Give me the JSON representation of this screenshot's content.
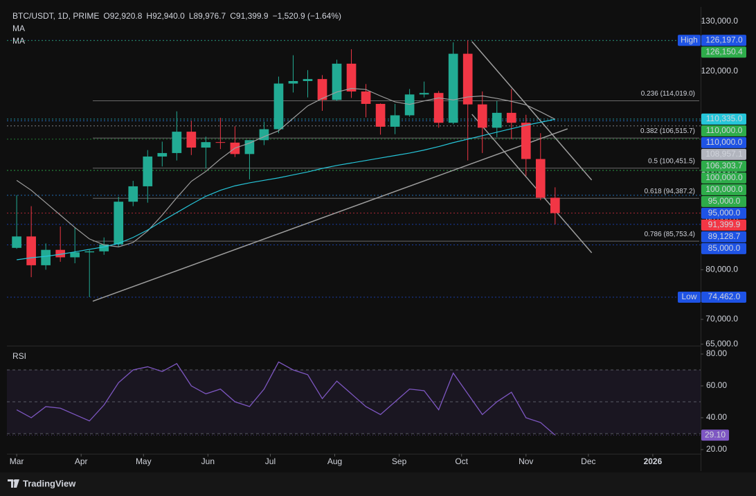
{
  "chart_data": {
    "type": "candlestick",
    "title": "BTC/USDT, 1D, PRIME",
    "header": {
      "labels": [
        "O",
        "H",
        "L",
        "C"
      ],
      "values": [
        92920.8,
        92940,
        89976.7,
        91399.9
      ],
      "value_labels": [
        "92,920.8",
        "92,940.0",
        "89,976.7",
        "91,399.9"
      ],
      "change": "−1,520.9 (−1.64%)"
    },
    "up_color": "#22ab94",
    "down_color": "#f23645",
    "x": [
      0,
      7,
      14,
      21,
      28,
      35,
      42,
      49,
      56,
      63,
      70,
      77,
      84,
      91,
      98,
      105,
      112,
      119,
      126,
      133,
      140,
      147,
      154,
      161,
      168,
      175,
      182,
      189,
      196,
      203,
      210,
      217,
      224,
      231,
      238,
      245,
      252,
      259
    ],
    "open": [
      84400,
      86700,
      80900,
      84000,
      82500,
      83500,
      83700,
      85100,
      93700,
      96800,
      102800,
      103500,
      107800,
      104600,
      105700,
      105600,
      103300,
      106100,
      108300,
      117500,
      118000,
      118400,
      114200,
      121500,
      115900,
      113400,
      108800,
      111100,
      115300,
      115600,
      109600,
      123500,
      113300,
      108600,
      111600,
      109600,
      102300,
      94500
    ],
    "high": [
      95000,
      92800,
      85300,
      88700,
      88500,
      84000,
      86500,
      94700,
      97900,
      104100,
      105800,
      111900,
      110000,
      106800,
      110600,
      108900,
      106000,
      109800,
      118900,
      123200,
      120200,
      119200,
      122300,
      124400,
      117400,
      113500,
      113400,
      116400,
      117900,
      116000,
      125800,
      126197,
      115900,
      114000,
      116400,
      111200,
      107500,
      96600
    ],
    "low": [
      84200,
      78500,
      80000,
      81600,
      81300,
      74462,
      83000,
      84700,
      92800,
      93500,
      100800,
      102000,
      103100,
      100400,
      104300,
      102700,
      98200,
      105100,
      107500,
      115700,
      114700,
      112000,
      114000,
      114600,
      110700,
      107200,
      107300,
      110800,
      114700,
      108600,
      109300,
      102000,
      103500,
      106700,
      106300,
      98900,
      94000,
      89128.7
    ],
    "close": [
      86700,
      80900,
      84000,
      82500,
      83500,
      83700,
      85100,
      93700,
      96800,
      102800,
      103500,
      107800,
      104600,
      105700,
      105600,
      103300,
      106100,
      108300,
      117500,
      118000,
      118400,
      114200,
      121500,
      115900,
      113400,
      108800,
      111100,
      115300,
      115600,
      109600,
      123500,
      113300,
      108600,
      111600,
      109600,
      102300,
      94500,
      91399.9
    ],
    "ma": [
      {
        "name": "MA",
        "color": "#9e9e9e",
        "values": [
          98000,
          96000,
          93500,
          91000,
          88500,
          86200,
          85000,
          84600,
          85500,
          87800,
          91000,
          94500,
          97800,
          99800,
          102300,
          104500,
          105500,
          106800,
          108000,
          110500,
          113000,
          114500,
          115800,
          116500,
          116300,
          115000,
          113800,
          113300,
          114000,
          114600,
          114200,
          114800,
          115000,
          114500,
          113900,
          113200,
          111800,
          110300
        ]
      },
      {
        "name": "MA",
        "color": "#26c6da",
        "values": [
          82000,
          82400,
          82700,
          83100,
          83600,
          84100,
          84600,
          85300,
          86500,
          88000,
          89800,
          91500,
          93200,
          94800,
          96000,
          96900,
          97500,
          98000,
          98500,
          99100,
          99700,
          100400,
          101000,
          101500,
          102000,
          102500,
          103000,
          103500,
          104100,
          104800,
          105600,
          106300,
          107000,
          107700,
          108400,
          109100,
          109700,
          110300
        ]
      }
    ],
    "xlim": [
      -4.7,
      329
    ],
    "xticks": [
      {
        "value": 0,
        "label": "Mar"
      },
      {
        "value": 31,
        "label": "Apr"
      },
      {
        "value": 61,
        "label": "May"
      },
      {
        "value": 92,
        "label": "Jun"
      },
      {
        "value": 122,
        "label": "Jul"
      },
      {
        "value": 153,
        "label": "Aug"
      },
      {
        "value": 184,
        "label": "Sep"
      },
      {
        "value": 214,
        "label": "Oct"
      },
      {
        "value": 245,
        "label": "Nov"
      },
      {
        "value": 275,
        "label": "Dec"
      },
      {
        "value": 306,
        "label": "2026"
      }
    ],
    "ylim": [
      64700,
      132930
    ],
    "yticks": [
      {
        "value": 65000,
        "label": "65,000.0"
      },
      {
        "value": 70000,
        "label": "70,000.0"
      },
      {
        "value": 80000,
        "label": "80,000.0"
      },
      {
        "value": 90000,
        "label": "90,000.0"
      },
      {
        "value": 100000,
        "label": "100,000.0"
      },
      {
        "value": 110000,
        "label": "110,000.0"
      },
      {
        "value": 120000,
        "label": "120,000.0"
      },
      {
        "value": 130000,
        "label": "130,000.0"
      }
    ],
    "price_tags": [
      {
        "tag": "High",
        "value": 126197,
        "label": "126,197.0",
        "color": "#1e53e5"
      },
      {
        "value": 126150.4,
        "label": "126,150.4",
        "color": "#2eac4a"
      },
      {
        "value": 110335,
        "label": "110,335.0",
        "color": "#26c6da"
      },
      {
        "value": 110000,
        "label": "110,000.0",
        "color": "#2eac4a"
      },
      {
        "value": 110000,
        "label": "110,000.0",
        "color": "#1e53e5"
      },
      {
        "value": 108957.1,
        "label": "108,957.1",
        "color": "#b2b5be"
      },
      {
        "value": 106303.7,
        "label": "106,303.7",
        "color": "#2eac4a"
      },
      {
        "value": 100000,
        "label": "100,000.0",
        "color": "#2eac4a"
      },
      {
        "value": 100000,
        "label": "100,000.0",
        "color": "#2eac4a"
      },
      {
        "value": 95000,
        "label": "95,000.0",
        "color": "#2eac4a"
      },
      {
        "value": 95000,
        "label": "95,000.0",
        "color": "#1e53e5"
      },
      {
        "value": 91399.9,
        "label": "91,399.9",
        "color": "#f23645"
      },
      {
        "value": 89128.7,
        "label": "89,128.7",
        "color": "#1e53e5"
      },
      {
        "value": 85000,
        "label": "85,000.0",
        "color": "#1e53e5"
      },
      {
        "tag": "Low",
        "value": 74462,
        "label": "74,462.0",
        "color": "#1e53e5"
      }
    ],
    "fib_levels": [
      {
        "label": "0.236 (114,019.0)",
        "value": 114019
      },
      {
        "label": "0.382 (106,515.7)",
        "value": 106515.7
      },
      {
        "label": "0.5 (100,451.5)",
        "value": 100451.5
      },
      {
        "label": "0.618 (94,387.2)",
        "value": 94387.2
      },
      {
        "label": "0.786 (85,753.4)",
        "value": 85753.4
      }
    ],
    "trendlines": [
      {
        "x": [
          36.6,
          265
        ],
        "y": [
          73655,
          108382
        ]
      },
      {
        "x": [
          219,
          276.6
        ],
        "y": [
          125955,
          98061
        ]
      },
      {
        "x": [
          219,
          276.6
        ],
        "y": [
          111311,
          83417
        ]
      }
    ],
    "rsi": {
      "title": "RSI",
      "color": "#7e57c2",
      "values": [
        45,
        40,
        47,
        46,
        42,
        38,
        48,
        62,
        70,
        72,
        69,
        74,
        60,
        55,
        58,
        50,
        47,
        58,
        75,
        70,
        67,
        52,
        63,
        55,
        47,
        42,
        50,
        58,
        57,
        45,
        68,
        55,
        42,
        50,
        56,
        40,
        37,
        29.1
      ],
      "ylim": [
        17.4,
        84.8
      ],
      "yticks": [
        {
          "value": 20,
          "label": "20.00"
        },
        {
          "value": 40,
          "label": "40.00"
        },
        {
          "value": 60,
          "label": "60.00"
        },
        {
          "value": 80,
          "label": "80.00"
        }
      ],
      "bands": [
        30,
        50,
        70
      ],
      "tag": {
        "value": 29.1,
        "label": "29.10"
      }
    },
    "footer": "TradingView"
  }
}
